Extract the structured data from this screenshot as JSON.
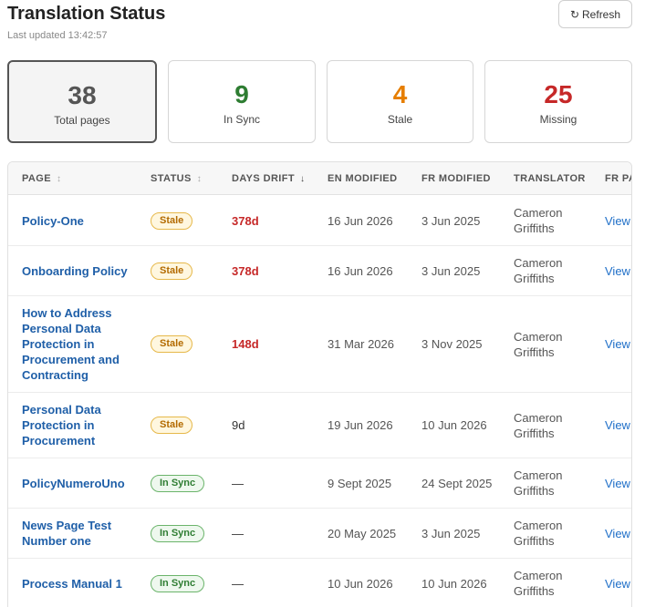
{
  "header": {
    "title": "Translation Status",
    "last_updated": "Last updated 13:42:57",
    "refresh_label": "Refresh",
    "refresh_icon": "refresh-icon"
  },
  "cards": [
    {
      "value": "38",
      "label": "Total pages",
      "color": "#555555",
      "selected": true
    },
    {
      "value": "9",
      "label": "In Sync",
      "color": "#2e7d32",
      "selected": false
    },
    {
      "value": "4",
      "label": "Stale",
      "color": "#e67e00",
      "selected": false
    },
    {
      "value": "25",
      "label": "Missing",
      "color": "#c62828",
      "selected": false
    }
  ],
  "table": {
    "columns": [
      {
        "label": "PAGE",
        "sort_icon": "↕"
      },
      {
        "label": "STATUS",
        "sort_icon": "↕"
      },
      {
        "label": "DAYS DRIFT",
        "sort_icon": "↓"
      },
      {
        "label": "EN MODIFIED",
        "sort_icon": ""
      },
      {
        "label": "FR MODIFIED",
        "sort_icon": ""
      },
      {
        "label": "TRANSLATOR",
        "sort_icon": ""
      },
      {
        "label": "FR PAGE",
        "sort_icon": ""
      }
    ],
    "rows": [
      {
        "page": "Policy-One",
        "status": "Stale",
        "drift": "378d",
        "en": "16 Jun 2026",
        "fr": "3 Jun 2025",
        "translator": "Cameron Griffiths",
        "link": "View"
      },
      {
        "page": "Onboarding Policy",
        "status": "Stale",
        "drift": "378d",
        "en": "16 Jun 2026",
        "fr": "3 Jun 2025",
        "translator": "Cameron Griffiths",
        "link": "View"
      },
      {
        "page": "How to Address Personal Data Protection in Procurement and Contracting",
        "status": "Stale",
        "drift": "148d",
        "en": "31 Mar 2026",
        "fr": "3 Nov 2025",
        "translator": "Cameron Griffiths",
        "link": "View"
      },
      {
        "page": "Personal Data Protection in Procurement",
        "status": "Stale",
        "drift": "9d",
        "en": "19 Jun 2026",
        "fr": "10 Jun 2026",
        "translator": "Cameron Griffiths",
        "link": "View"
      },
      {
        "page": "PolicyNumeroUno",
        "status": "In Sync",
        "drift": "—",
        "en": "9 Sept 2025",
        "fr": "24 Sept 2025",
        "translator": "Cameron Griffiths",
        "link": "View"
      },
      {
        "page": "News Page Test Number one",
        "status": "In Sync",
        "drift": "—",
        "en": "20 May 2025",
        "fr": "3 Jun 2025",
        "translator": "Cameron Griffiths",
        "link": "View"
      },
      {
        "page": "Process Manual 1",
        "status": "In Sync",
        "drift": "—",
        "en": "10 Jun 2026",
        "fr": "10 Jun 2026",
        "translator": "Cameron Griffiths",
        "link": "View"
      }
    ]
  }
}
